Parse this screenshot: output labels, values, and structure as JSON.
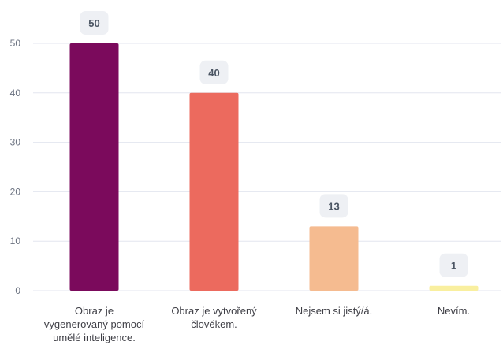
{
  "chart_data": {
    "type": "bar",
    "categories": [
      [
        "Obraz je",
        "vygenerovaný pomocí",
        "umělé inteligence."
      ],
      [
        "Obraz je vytvořený",
        "člověkem."
      ],
      [
        "Nejsem si jistý/á."
      ],
      [
        "Nevím."
      ]
    ],
    "values": [
      50,
      40,
      13,
      1
    ],
    "data_labels": [
      "50",
      "40",
      "13",
      "1"
    ],
    "bar_colors": [
      "#7b0a5c",
      "#ec6a5e",
      "#f5bb90",
      "#f9ef9f"
    ],
    "y_ticks": [
      0,
      10,
      20,
      30,
      40,
      50
    ],
    "ylim": [
      0,
      50
    ],
    "grid": true,
    "title": "",
    "xlabel": "",
    "ylabel": ""
  },
  "colors": {
    "grid": "#e3e6ef",
    "tick_text": "#6b7280",
    "category_text": "#3f3f46",
    "label_bg": "#eef0f4",
    "label_text": "#4b5563"
  }
}
